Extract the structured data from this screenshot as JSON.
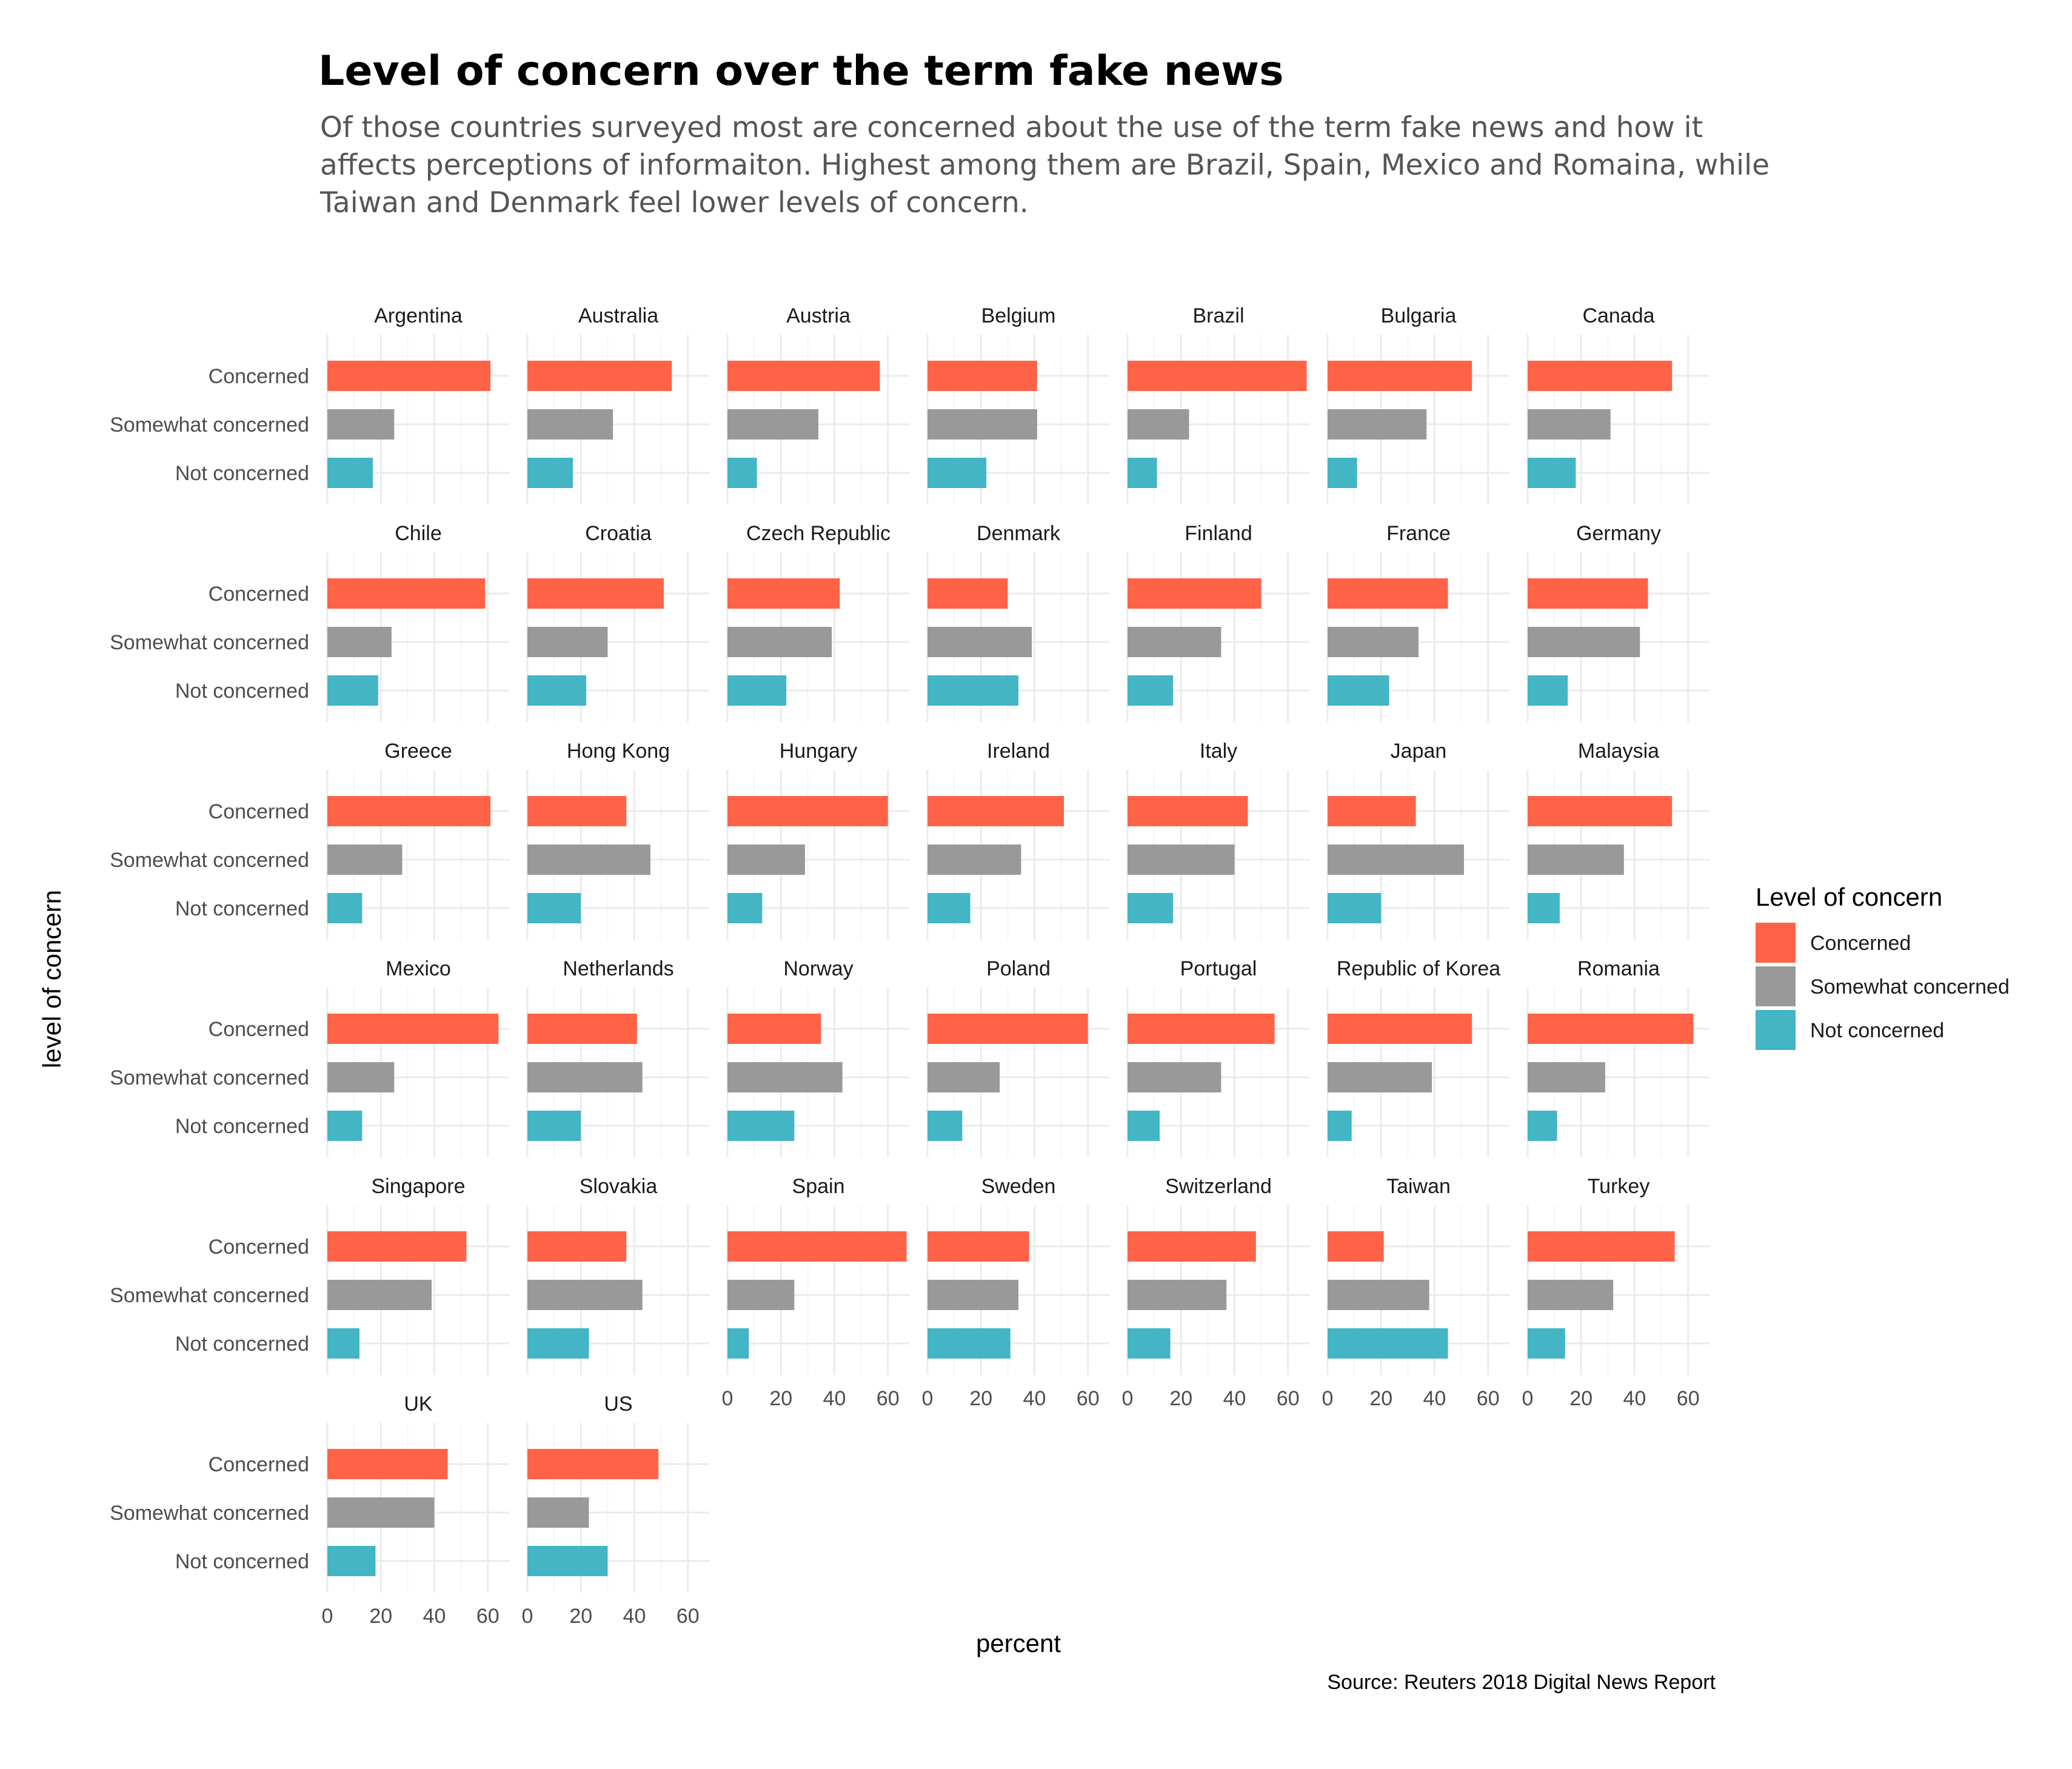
{
  "chart_data": {
    "type": "bar",
    "title": "Level of concern over the term fake news",
    "subtitle": [
      "Of those countries surveyed most are concerned about the use of the term fake news and how it",
      "affects perceptions of informaiton. Highest among them are Brazil, Spain, Mexico and Romaina, while",
      "Taiwan and Denmark feel lower levels of concern."
    ],
    "xlabel": "percent",
    "ylabel": "level of concern",
    "caption": "Source: Reuters 2018 Digital News Report",
    "xlim": [
      0,
      68
    ],
    "x_ticks": [
      0,
      20,
      40,
      60
    ],
    "categories": [
      "Concerned",
      "Somewhat concerned",
      "Not concerned"
    ],
    "colors": {
      "Concerned": "#FF6347",
      "Somewhat concerned": "#999999",
      "Not concerned": "#43B5C4"
    },
    "legend": {
      "title": "Level of concern",
      "position": "right",
      "entries": [
        "Concerned",
        "Somewhat concerned",
        "Not concerned"
      ]
    },
    "grid": true,
    "facets": [
      {
        "country": "Argentina",
        "values": [
          61,
          25,
          17
        ]
      },
      {
        "country": "Australia",
        "values": [
          54,
          32,
          17
        ]
      },
      {
        "country": "Austria",
        "values": [
          57,
          34,
          11
        ]
      },
      {
        "country": "Belgium",
        "values": [
          41,
          41,
          22
        ]
      },
      {
        "country": "Brazil",
        "values": [
          67,
          23,
          11
        ]
      },
      {
        "country": "Bulgaria",
        "values": [
          54,
          37,
          11
        ]
      },
      {
        "country": "Canada",
        "values": [
          54,
          31,
          18
        ]
      },
      {
        "country": "Chile",
        "values": [
          59,
          24,
          19
        ]
      },
      {
        "country": "Croatia",
        "values": [
          51,
          30,
          22
        ]
      },
      {
        "country": "Czech Republic",
        "values": [
          42,
          39,
          22
        ]
      },
      {
        "country": "Denmark",
        "values": [
          30,
          39,
          34
        ]
      },
      {
        "country": "Finland",
        "values": [
          50,
          35,
          17
        ]
      },
      {
        "country": "France",
        "values": [
          45,
          34,
          23
        ]
      },
      {
        "country": "Germany",
        "values": [
          45,
          42,
          15
        ]
      },
      {
        "country": "Greece",
        "values": [
          61,
          28,
          13
        ]
      },
      {
        "country": "Hong Kong",
        "values": [
          37,
          46,
          20
        ]
      },
      {
        "country": "Hungary",
        "values": [
          60,
          29,
          13
        ]
      },
      {
        "country": "Ireland",
        "values": [
          51,
          35,
          16
        ]
      },
      {
        "country": "Italy",
        "values": [
          45,
          40,
          17
        ]
      },
      {
        "country": "Japan",
        "values": [
          33,
          51,
          20
        ]
      },
      {
        "country": "Malaysia",
        "values": [
          54,
          36,
          12
        ]
      },
      {
        "country": "Mexico",
        "values": [
          64,
          25,
          13
        ]
      },
      {
        "country": "Netherlands",
        "values": [
          41,
          43,
          20
        ]
      },
      {
        "country": "Norway",
        "values": [
          35,
          43,
          25
        ]
      },
      {
        "country": "Poland",
        "values": [
          60,
          27,
          13
        ]
      },
      {
        "country": "Portugal",
        "values": [
          55,
          35,
          12
        ]
      },
      {
        "country": "Republic of Korea",
        "values": [
          54,
          39,
          9
        ]
      },
      {
        "country": "Romania",
        "values": [
          62,
          29,
          11
        ]
      },
      {
        "country": "Singapore",
        "values": [
          52,
          39,
          12
        ]
      },
      {
        "country": "Slovakia",
        "values": [
          37,
          43,
          23
        ]
      },
      {
        "country": "Spain",
        "values": [
          67,
          25,
          8
        ]
      },
      {
        "country": "Sweden",
        "values": [
          38,
          34,
          31
        ]
      },
      {
        "country": "Switzerland",
        "values": [
          48,
          37,
          16
        ]
      },
      {
        "country": "Taiwan",
        "values": [
          21,
          38,
          45
        ]
      },
      {
        "country": "Turkey",
        "values": [
          55,
          32,
          14
        ]
      },
      {
        "country": "UK",
        "values": [
          45,
          40,
          18
        ]
      },
      {
        "country": "US",
        "values": [
          49,
          23,
          30
        ]
      }
    ]
  }
}
